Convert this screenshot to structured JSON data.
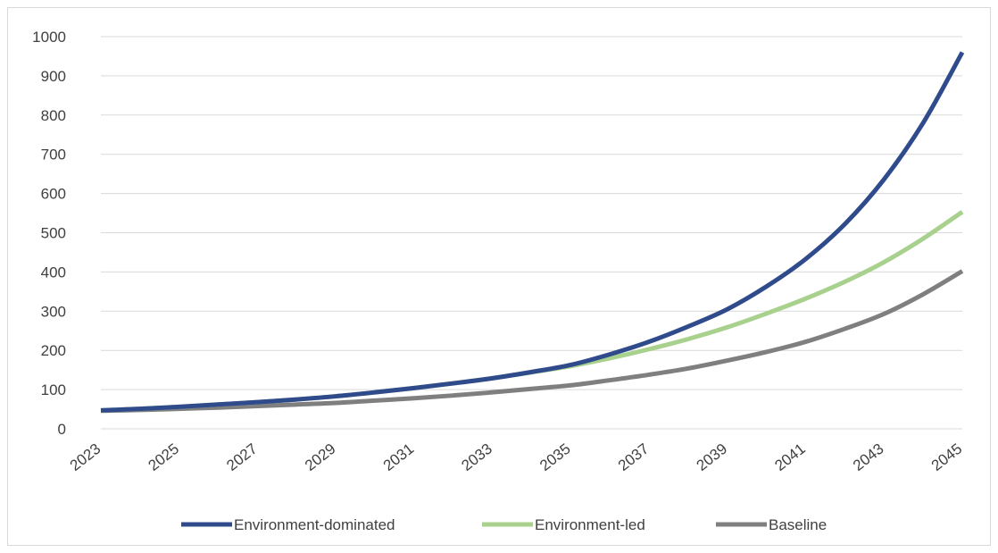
{
  "chart_data": {
    "type": "line",
    "title": "",
    "xlabel": "",
    "ylabel": "",
    "x": [
      2023,
      2024,
      2025,
      2026,
      2027,
      2028,
      2029,
      2030,
      2031,
      2032,
      2033,
      2034,
      2035,
      2036,
      2037,
      2038,
      2039,
      2040,
      2041,
      2042,
      2043,
      2044,
      2045
    ],
    "x_tick_labels": [
      "2023",
      "2025",
      "2027",
      "2029",
      "2031",
      "2033",
      "2035",
      "2037",
      "2039",
      "2041",
      "2043",
      "2045"
    ],
    "ylim": [
      0,
      1000
    ],
    "y_ticks": [
      0,
      100,
      200,
      300,
      400,
      500,
      600,
      700,
      800,
      900,
      1000
    ],
    "grid": "horizontal",
    "legend_position": "bottom",
    "series": [
      {
        "name": "Environment-dominated",
        "color": "#2f4b8c",
        "values": [
          47,
          51,
          56,
          62,
          68,
          75,
          83,
          93,
          104,
          116,
          129,
          145,
          163,
          190,
          222,
          261,
          305,
          363,
          433,
          522,
          636,
          780,
          960
        ]
      },
      {
        "name": "Environment-led",
        "color": "#a9d18e",
        "values": [
          47,
          51,
          56,
          62,
          68,
          75,
          83,
          93,
          104,
          116,
          129,
          144,
          160,
          180,
          203,
          229,
          259,
          294,
          332,
          375,
          425,
          485,
          553
        ]
      },
      {
        "name": "Baseline",
        "color": "#7f7f7f",
        "values": [
          46,
          48,
          51,
          54,
          58,
          62,
          66,
          72,
          78,
          85,
          93,
          102,
          111,
          124,
          138,
          154,
          174,
          196,
          222,
          255,
          293,
          343,
          402
        ]
      }
    ]
  }
}
